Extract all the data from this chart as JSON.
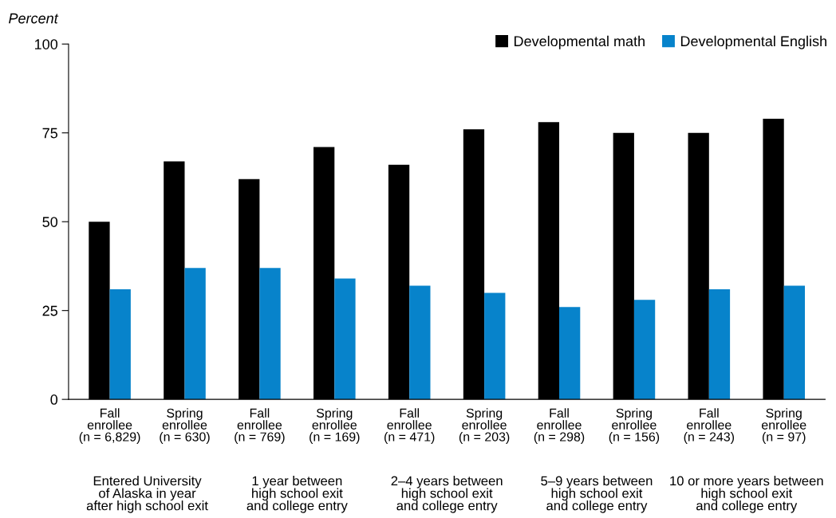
{
  "chart_data": {
    "type": "bar",
    "ylabel": "Percent",
    "categories": [
      "Fall\nenrollee\n(n = 6,829)",
      "Spring\nenrollee\n(n = 630)",
      "Fall\nenrollee\n(n = 769)",
      "Spring\nenrollee\n(n = 169)",
      "Fall\nenrollee\n(n = 471)",
      "Spring\nenrollee\n(n = 203)",
      "Fall\nenrollee\n(n = 298)",
      "Spring\nenrollee\n(n = 156)",
      "Fall\nenrollee\n(n = 243)",
      "Spring\nenrollee\n(n = 97)"
    ],
    "series": [
      {
        "name": "Developmental math",
        "color": "#000000",
        "values": [
          50,
          67,
          62,
          71,
          66,
          76,
          78,
          75,
          75,
          79
        ]
      },
      {
        "name": "Developmental English",
        "color": "#0783cb",
        "values": [
          31,
          37,
          37,
          34,
          32,
          30,
          26,
          28,
          31,
          32
        ]
      }
    ],
    "annotations": [
      "Entered University\nof Alaska in year\nafter high school exit",
      "1 year between\nhigh school exit\nand college entry",
      "2–4 years between\nhigh school exit\nand college entry",
      "5–9 years between\nhigh school exit\nand college entry",
      "10 or more years between\nhigh school exit\nand college entry"
    ],
    "ylim": [
      0,
      100
    ],
    "yticks": [
      0,
      25,
      50,
      75,
      100
    ],
    "grid": false,
    "legend": "top right"
  }
}
